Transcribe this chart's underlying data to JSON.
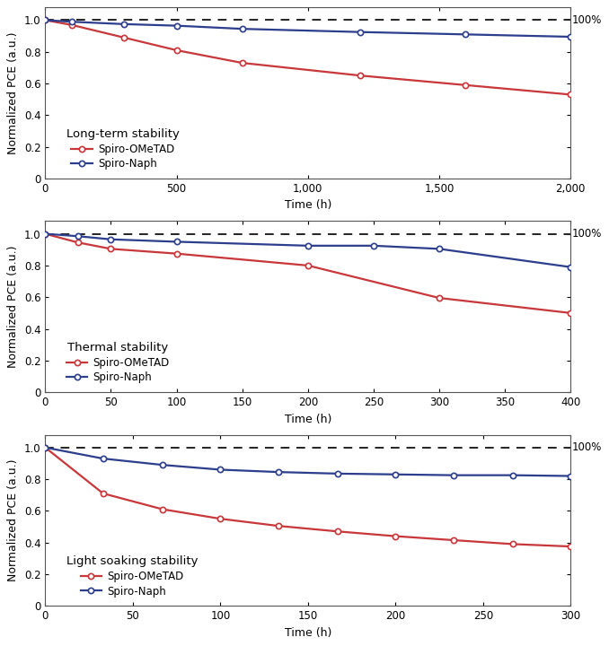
{
  "panel1": {
    "title": "Long-term stability",
    "xlabel": "Time (h)",
    "ylabel": "Normalized PCE (a.u.)",
    "xlim": [
      0,
      2000
    ],
    "xticks": [
      0,
      500,
      1000,
      1500,
      2000
    ],
    "xticklabels": [
      "0",
      "500",
      "1,000",
      "1,500",
      "2,000"
    ],
    "ylim": [
      0,
      1.08
    ],
    "yticks": [
      0,
      0.2,
      0.4,
      0.6,
      0.8,
      1.0
    ],
    "yticklabels": [
      "0",
      "0.2",
      "0.4",
      "0.6",
      "0.8",
      "1.0"
    ],
    "red_x": [
      0,
      100,
      300,
      500,
      750,
      1200,
      1600,
      2000
    ],
    "red_y": [
      1.0,
      0.97,
      0.89,
      0.81,
      0.73,
      0.65,
      0.59,
      0.53
    ],
    "blue_x": [
      0,
      100,
      300,
      500,
      750,
      1200,
      1600,
      2000
    ],
    "blue_y": [
      1.0,
      0.99,
      0.975,
      0.965,
      0.945,
      0.925,
      0.91,
      0.895
    ]
  },
  "panel2": {
    "title": "Thermal stability",
    "xlabel": "Time (h)",
    "ylabel": "Normalized PCE (a.u.)",
    "xlim": [
      0,
      400
    ],
    "xticks": [
      0,
      50,
      100,
      150,
      200,
      250,
      300,
      350,
      400
    ],
    "xticklabels": [
      "0",
      "50",
      "100",
      "150",
      "200",
      "250",
      "300",
      "350",
      "400"
    ],
    "ylim": [
      0,
      1.08
    ],
    "yticks": [
      0,
      0.2,
      0.4,
      0.6,
      0.8,
      1.0
    ],
    "yticklabels": [
      "0",
      "0.2",
      "0.4",
      "0.6",
      "0.8",
      "1.0"
    ],
    "red_x": [
      0,
      25,
      50,
      100,
      200,
      300,
      400
    ],
    "red_y": [
      1.0,
      0.945,
      0.905,
      0.875,
      0.8,
      0.595,
      0.5
    ],
    "blue_x": [
      0,
      25,
      50,
      100,
      200,
      250,
      300,
      400
    ],
    "blue_y": [
      1.0,
      0.985,
      0.965,
      0.95,
      0.925,
      0.925,
      0.905,
      0.79
    ]
  },
  "panel3": {
    "title": "Light soaking stability",
    "xlabel": "Time (h)",
    "ylabel": "Normalized PCE (a.u.)",
    "xlim": [
      0,
      300
    ],
    "xticks": [
      0,
      50,
      100,
      150,
      200,
      250,
      300
    ],
    "xticklabels": [
      "0",
      "50",
      "100",
      "150",
      "200",
      "250",
      "300"
    ],
    "ylim": [
      0,
      1.08
    ],
    "yticks": [
      0,
      0.2,
      0.4,
      0.6,
      0.8,
      1.0
    ],
    "yticklabels": [
      "0",
      "0.2",
      "0.4",
      "0.6",
      "0.8",
      "1.0"
    ],
    "red_x": [
      0,
      33,
      67,
      100,
      133,
      167,
      200,
      233,
      267,
      300
    ],
    "red_y": [
      1.0,
      0.71,
      0.61,
      0.55,
      0.505,
      0.47,
      0.44,
      0.415,
      0.39,
      0.375
    ],
    "blue_x": [
      0,
      33,
      67,
      100,
      133,
      167,
      200,
      233,
      267,
      300
    ],
    "blue_y": [
      1.0,
      0.93,
      0.89,
      0.86,
      0.845,
      0.835,
      0.83,
      0.825,
      0.825,
      0.82
    ]
  },
  "red_color": "#C8373A",
  "blue_color": "#2C3E8C",
  "dashed_line_color": "#222222",
  "annotation_100": "100%",
  "legend_label_red": "Spiro-OMeTAD",
  "legend_label_blue": "Spiro-Naph",
  "marker": "o",
  "markersize": 4.5,
  "linewidth": 1.6,
  "title_fontsize": 9.5,
  "label_fontsize": 9,
  "tick_fontsize": 8.5,
  "legend_fontsize": 8.5,
  "annotation_fontsize": 8.5,
  "spine_color": "#555555",
  "bg_color": "#ffffff"
}
